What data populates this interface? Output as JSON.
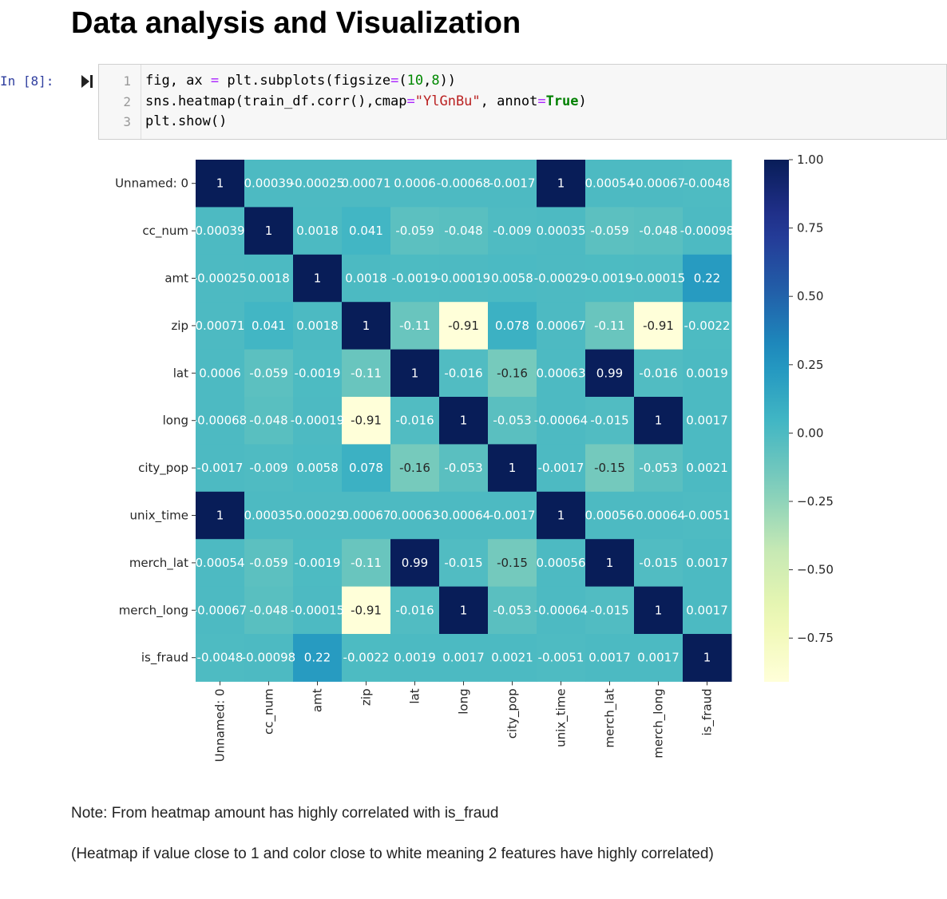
{
  "heading": "Data analysis and Visualization",
  "cell": {
    "prompt": "In [8]:",
    "line_numbers": [
      "1",
      "2",
      "3"
    ],
    "code": {
      "l1_a": "fig, ax ",
      "l1_eq": "=",
      "l1_b": " plt.subplots(figsize",
      "l1_eq2": "=",
      "l1_c": "(",
      "l1_n1": "10",
      "l1_d": ",",
      "l1_n2": "8",
      "l1_e": "))",
      "l2_a": "sns.heatmap(train_df.corr(),cmap",
      "l2_eq": "=",
      "l2_str": "\"YlGnBu\"",
      "l2_b": ", annot",
      "l2_eq2": "=",
      "l2_kw": "True",
      "l2_c": ")",
      "l3": "plt.show()"
    }
  },
  "chart_data": {
    "type": "heatmap",
    "labels": [
      "Unnamed: 0",
      "cc_num",
      "amt",
      "zip",
      "lat",
      "long",
      "city_pop",
      "unix_time",
      "merch_lat",
      "merch_long",
      "is_fraud"
    ],
    "values": [
      [
        1,
        0.00039,
        -0.00025,
        0.00071,
        0.0006,
        -0.00068,
        -0.0017,
        1,
        0.00054,
        -0.00067,
        -0.0048
      ],
      [
        0.00039,
        1,
        0.0018,
        0.041,
        -0.059,
        -0.048,
        -0.009,
        0.00035,
        -0.059,
        -0.048,
        -0.00098
      ],
      [
        -0.00025,
        0.0018,
        1,
        0.0018,
        -0.0019,
        -0.00019,
        0.0058,
        -0.00029,
        -0.0019,
        -0.00015,
        0.22
      ],
      [
        0.00071,
        0.041,
        0.0018,
        1,
        -0.11,
        -0.91,
        0.078,
        0.00067,
        -0.11,
        -0.91,
        -0.0022
      ],
      [
        0.0006,
        -0.059,
        -0.0019,
        -0.11,
        1,
        -0.016,
        -0.16,
        0.00063,
        0.99,
        -0.016,
        0.0019
      ],
      [
        -0.00068,
        -0.048,
        -0.00019,
        -0.91,
        -0.016,
        1,
        -0.053,
        -0.00064,
        -0.015,
        1,
        0.0017
      ],
      [
        -0.0017,
        -0.009,
        0.0058,
        0.078,
        -0.16,
        -0.053,
        1,
        -0.0017,
        -0.15,
        -0.053,
        0.0021
      ],
      [
        1,
        0.00035,
        -0.00029,
        0.00067,
        0.00063,
        -0.00064,
        -0.0017,
        1,
        0.00056,
        -0.00064,
        -0.0051
      ],
      [
        0.00054,
        -0.059,
        -0.0019,
        -0.11,
        0.99,
        -0.015,
        -0.15,
        0.00056,
        1,
        -0.015,
        0.0017
      ],
      [
        -0.00067,
        -0.048,
        -0.00015,
        -0.91,
        -0.016,
        1,
        -0.053,
        -0.00064,
        -0.015,
        1,
        0.0017
      ],
      [
        -0.0048,
        -0.00098,
        0.22,
        -0.0022,
        0.0019,
        0.0017,
        0.0021,
        -0.0051,
        0.0017,
        0.0017,
        1
      ]
    ],
    "annot": [
      [
        "1",
        "0.00039",
        "-0.00025",
        "0.00071",
        "0.0006",
        "-0.00068",
        "-0.0017",
        "1",
        "0.00054",
        "-0.00067",
        "-0.0048"
      ],
      [
        "0.00039",
        "1",
        "0.0018",
        "0.041",
        "-0.059",
        "-0.048",
        "-0.009",
        "0.00035",
        "-0.059",
        "-0.048",
        "-0.00098"
      ],
      [
        "-0.00025",
        "0.0018",
        "1",
        "0.0018",
        "-0.0019",
        "-0.00019",
        "0.0058",
        "-0.00029",
        "-0.0019",
        "-0.00015",
        "0.22"
      ],
      [
        "0.00071",
        "0.041",
        "0.0018",
        "1",
        "-0.11",
        "-0.91",
        "0.078",
        "0.00067",
        "-0.11",
        "-0.91",
        "-0.0022"
      ],
      [
        "0.0006",
        "-0.059",
        "-0.0019",
        "-0.11",
        "1",
        "-0.016",
        "-0.16",
        "0.00063",
        "0.99",
        "-0.016",
        "0.0019"
      ],
      [
        "-0.00068",
        "-0.048",
        "-0.00019",
        "-0.91",
        "-0.016",
        "1",
        "-0.053",
        "-0.00064",
        "-0.015",
        "1",
        "0.0017"
      ],
      [
        "-0.0017",
        "-0.009",
        "0.0058",
        "0.078",
        "-0.16",
        "-0.053",
        "1",
        "-0.0017",
        "-0.15",
        "-0.053",
        "0.0021"
      ],
      [
        "1",
        "0.00035",
        "-0.00029",
        "0.00067",
        "0.00063",
        "-0.00064",
        "-0.0017",
        "1",
        "0.00056",
        "-0.00064",
        "-0.0051"
      ],
      [
        "0.00054",
        "-0.059",
        "-0.0019",
        "-0.11",
        "0.99",
        "-0.015",
        "-0.15",
        "0.00056",
        "1",
        "-0.015",
        "0.0017"
      ],
      [
        "-0.00067",
        "-0.048",
        "-0.00015",
        "-0.91",
        "-0.016",
        "1",
        "-0.053",
        "-0.00064",
        "-0.015",
        "1",
        "0.0017"
      ],
      [
        "-0.0048",
        "-0.00098",
        "0.22",
        "-0.0022",
        "0.0019",
        "0.0017",
        "0.0021",
        "-0.0051",
        "0.0017",
        "0.0017",
        "1"
      ]
    ],
    "colormap": "YlGnBu",
    "vmin": -0.91,
    "vmax": 1,
    "colorbar_ticks": [
      1.0,
      0.75,
      0.5,
      0.25,
      0.0,
      -0.25,
      -0.5,
      -0.75
    ],
    "colorbar_tick_labels": [
      "1.00",
      "0.75",
      "0.50",
      "0.25",
      "0.00",
      "−0.25",
      "−0.50",
      "−0.75"
    ]
  },
  "notes": {
    "line1": "Note: From heatmap amount has highly correlated with is_fraud",
    "line2": "(Heatmap if value close to 1 and color close to white meaning 2 features have highly correlated)"
  }
}
